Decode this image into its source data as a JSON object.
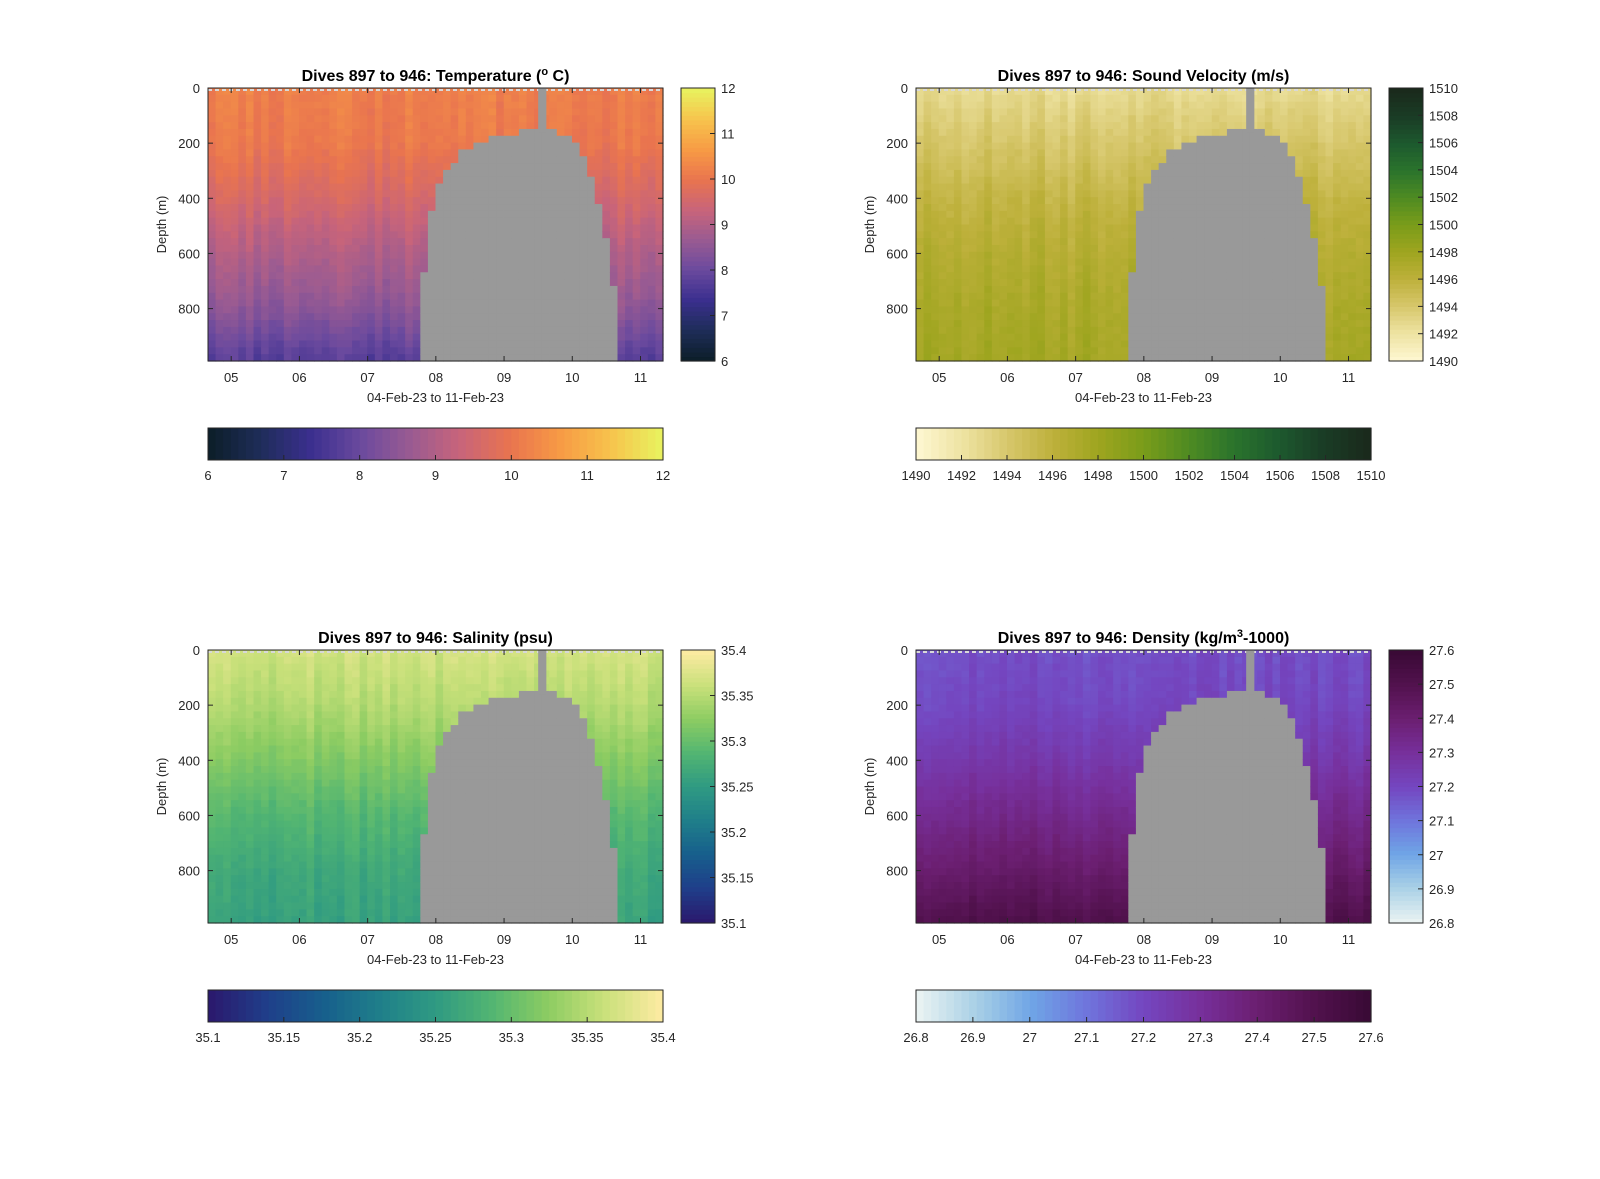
{
  "figure": {
    "background": "#ffffff",
    "axis_color": "#262626",
    "masked_color": "#999999"
  },
  "chart_data": [
    {
      "type": "heatmap",
      "title": "Dives 897 to 946: Temperature (° C)",
      "title_parts": [
        "Dives 897 to 946: Temperature (",
        "o",
        " C)"
      ],
      "xlabel": "04-Feb-23 to 11-Feb-23",
      "ylabel": "Depth (m)",
      "x_ticks": [
        "05",
        "06",
        "07",
        "08",
        "09",
        "10",
        "11"
      ],
      "y_ticks": [
        "0",
        "200",
        "400",
        "600",
        "800"
      ],
      "xlim_days": [
        4.66,
        11.33
      ],
      "ylim": [
        0,
        990
      ],
      "variable": "temperature",
      "colorbar": {
        "range": [
          6,
          12
        ],
        "ticks": [
          "6",
          "7",
          "8",
          "9",
          "10",
          "11",
          "12"
        ],
        "colors": [
          "#0d1f2b",
          "#1f2d5a",
          "#3b2f8f",
          "#6b4a9e",
          "#9a5b92",
          "#c8647a",
          "#e9744f",
          "#f79a45",
          "#f7c24c",
          "#e9f05e"
        ]
      },
      "profile_surface_to_bottom": [
        10.2,
        10.1,
        9.6,
        9.0,
        8.5,
        7.7
      ],
      "masked": "bathymetry (grey) roughly between 07.75 and 10.7, rising to ~150 m near 09.5"
    },
    {
      "type": "heatmap",
      "title": "Dives 897 to 946: Sound Velocity (m/s)",
      "title_parts": [
        "Dives 897 to 946: Sound Velocity (m/s)"
      ],
      "xlabel": "04-Feb-23 to 11-Feb-23",
      "ylabel": "Depth (m)",
      "x_ticks": [
        "05",
        "06",
        "07",
        "08",
        "09",
        "10",
        "11"
      ],
      "y_ticks": [
        "0",
        "200",
        "400",
        "600",
        "800"
      ],
      "xlim_days": [
        4.66,
        11.33
      ],
      "ylim": [
        0,
        990
      ],
      "variable": "sound_velocity",
      "colorbar": {
        "range": [
          1490,
          1510
        ],
        "ticks": [
          "1490",
          "1492",
          "1494",
          "1496",
          "1498",
          "1500",
          "1502",
          "1504",
          "1506",
          "1508",
          "1510"
        ],
        "colors": [
          "#fdf6cf",
          "#ede2a0",
          "#d6c66a",
          "#bdb03a",
          "#9ea51f",
          "#7a9c1a",
          "#4f8b22",
          "#2b742c",
          "#1d5a2e",
          "#1a3d26",
          "#1a2a1c"
        ]
      },
      "profile_surface_to_bottom": [
        1492.5,
        1494.0,
        1495.5,
        1496.5,
        1497.2,
        1497.6
      ],
      "masked": "bathymetry (grey) roughly between 07.75 and 10.7, rising to ~150 m near 09.5"
    },
    {
      "type": "heatmap",
      "title": "Dives 897 to 946: Salinity (psu)",
      "title_parts": [
        "Dives 897 to 946: Salinity (psu)"
      ],
      "xlabel": "04-Feb-23 to 11-Feb-23",
      "ylabel": "Depth (m)",
      "x_ticks": [
        "05",
        "06",
        "07",
        "08",
        "09",
        "10",
        "11"
      ],
      "y_ticks": [
        "0",
        "200",
        "400",
        "600",
        "800"
      ],
      "xlim_days": [
        4.66,
        11.33
      ],
      "ylim": [
        0,
        990
      ],
      "variable": "salinity",
      "colorbar": {
        "range": [
          35.1,
          35.4
        ],
        "ticks": [
          "35.1",
          "35.15",
          "35.2",
          "35.25",
          "35.3",
          "35.35",
          "35.4"
        ],
        "colors": [
          "#2a1a6e",
          "#1f3f8a",
          "#175f8c",
          "#1f7f8a",
          "#2f9a82",
          "#52b572",
          "#8ccc62",
          "#c8e07a",
          "#fbeaa0"
        ]
      },
      "profile_surface_to_bottom": [
        35.37,
        35.35,
        35.32,
        35.29,
        35.27,
        35.26
      ],
      "masked": "bathymetry (grey) roughly between 07.75 and 10.7, rising to ~150 m near 09.5"
    },
    {
      "type": "heatmap",
      "title": "Dives 897 to 946: Density (kg/m³-1000)",
      "title_parts": [
        "Dives 897 to 946: Density (kg/m",
        "3",
        "-1000)"
      ],
      "xlabel": "04-Feb-23 to 11-Feb-23",
      "ylabel": "Depth (m)",
      "x_ticks": [
        "05",
        "06",
        "07",
        "08",
        "09",
        "10",
        "11"
      ],
      "y_ticks": [
        "0",
        "200",
        "400",
        "600",
        "800"
      ],
      "xlim_days": [
        4.66,
        11.33
      ],
      "ylim": [
        0,
        990
      ],
      "variable": "density",
      "colorbar": {
        "range": [
          26.8,
          27.6
        ],
        "ticks": [
          "26.8",
          "26.9",
          "27",
          "27.1",
          "27.2",
          "27.3",
          "27.4",
          "27.5",
          "27.6"
        ],
        "colors": [
          "#e8f2f2",
          "#a9d0e6",
          "#6fa5e6",
          "#6f74dc",
          "#7446c0",
          "#77309c",
          "#6c1f72",
          "#53124f",
          "#3a0a36"
        ]
      },
      "profile_surface_to_bottom": [
        27.18,
        27.2,
        27.26,
        27.34,
        27.42,
        27.52
      ],
      "masked": "bathymetry (grey) roughly between 07.75 and 10.7, rising to ~150 m near 09.5"
    }
  ]
}
